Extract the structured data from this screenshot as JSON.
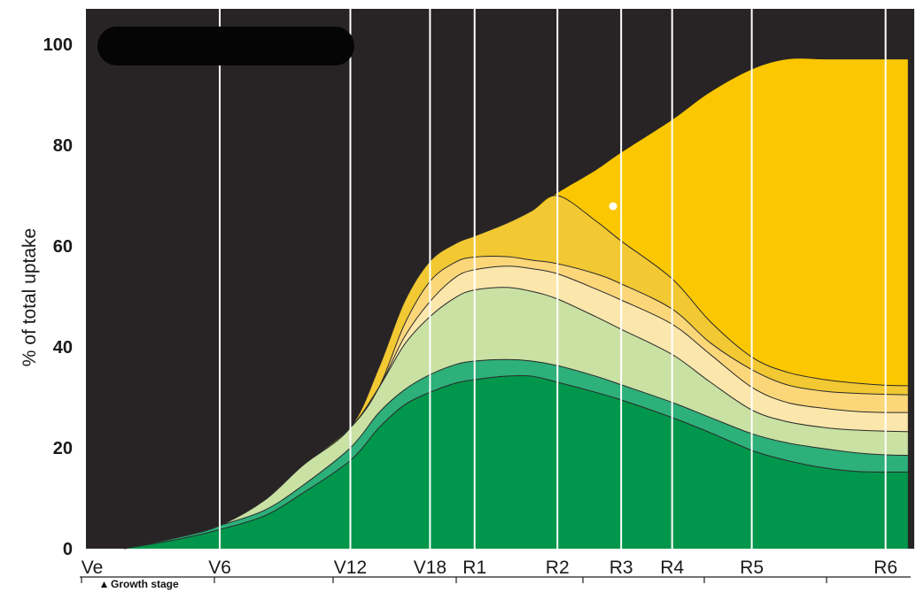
{
  "chart_data": {
    "type": "area",
    "stacked": true,
    "ylabel": "% of total uptake",
    "xlabel_note": "Growth stage",
    "ylim": [
      0,
      100
    ],
    "yticks": [
      0,
      20,
      40,
      60,
      80,
      100
    ],
    "x_stages": [
      "Ve",
      "V6",
      "V12",
      "V18",
      "R1",
      "R2",
      "R3",
      "R4",
      "R5",
      "R6"
    ],
    "x_stage_positions": [
      0,
      2.1,
      4.15,
      5.4,
      6.1,
      7.4,
      8.4,
      9.2,
      10.45,
      12.55
    ],
    "x": [
      0.6,
      1.5,
      2.1,
      2.8,
      3.4,
      4.15,
      4.6,
      5.0,
      5.4,
      5.8,
      6.1,
      6.6,
      7.0,
      7.4,
      8.0,
      8.4,
      9.2,
      9.8,
      10.45,
      11.0,
      11.6,
      12.1,
      12.55,
      12.9
    ],
    "series_boundaries": [
      [
        0,
        2.0,
        3.8,
        6.5,
        11.0,
        17.5,
        24.0,
        28.5,
        31.0,
        32.8,
        33.5,
        34.2,
        34.2,
        33.0,
        31.0,
        29.5,
        26.0,
        23.0,
        19.5,
        17.5,
        16.0,
        15.3,
        15.2,
        15.2
      ],
      [
        0,
        2.4,
        4.6,
        7.6,
        12.5,
        20.0,
        27.0,
        31.5,
        34.5,
        36.5,
        37.2,
        37.5,
        37.2,
        36.3,
        34.2,
        32.5,
        29.0,
        26.0,
        22.8,
        21.0,
        19.8,
        19.0,
        18.6,
        18.5
      ],
      [
        0,
        2.4,
        4.6,
        9.6,
        16.5,
        24.0,
        32.0,
        40.5,
        46.0,
        49.8,
        51.3,
        51.8,
        51.0,
        49.5,
        46.0,
        43.5,
        38.5,
        33.0,
        27.5,
        25.2,
        24.0,
        23.5,
        23.3,
        23.2
      ],
      [
        0,
        2.4,
        4.6,
        9.6,
        16.5,
        24.0,
        32.0,
        42.0,
        49.0,
        53.8,
        55.3,
        56.0,
        55.5,
        54.5,
        51.5,
        49.3,
        44.5,
        38.5,
        32.0,
        29.0,
        27.8,
        27.2,
        27.0,
        27.0
      ],
      [
        0,
        2.4,
        4.6,
        9.6,
        16.5,
        24.0,
        32.0,
        44.5,
        53.0,
        56.8,
        57.8,
        57.9,
        57.2,
        56.5,
        54.5,
        52.5,
        47.5,
        40.8,
        35.5,
        32.5,
        31.2,
        30.8,
        30.6,
        30.5
      ],
      [
        0,
        2.4,
        4.6,
        9.6,
        16.5,
        24.0,
        36.0,
        49.0,
        57.0,
        60.5,
        62.0,
        64.5,
        67.0,
        70.0,
        65.0,
        61.0,
        53.5,
        45.0,
        38.0,
        35.0,
        33.5,
        32.8,
        32.4,
        32.3
      ],
      [
        0,
        2.4,
        4.6,
        9.6,
        16.5,
        24.0,
        36.0,
        49.0,
        57.0,
        60.5,
        62.0,
        64.5,
        67.0,
        70.5,
        75.0,
        78.5,
        85.0,
        90.5,
        95.0,
        97.0,
        97.0,
        97.0,
        97.0,
        97.0
      ]
    ],
    "band_colors": [
      "#00964b",
      "#2db07a",
      "#c9e1a3",
      "#fbe6ac",
      "#fcd77a",
      "#f2c833",
      "#fbc700"
    ],
    "background_color": "#282425",
    "stage_line_color": "#ffffff",
    "boundary_line_color": "#2a2a2a"
  },
  "legend": {
    "note": ""
  }
}
